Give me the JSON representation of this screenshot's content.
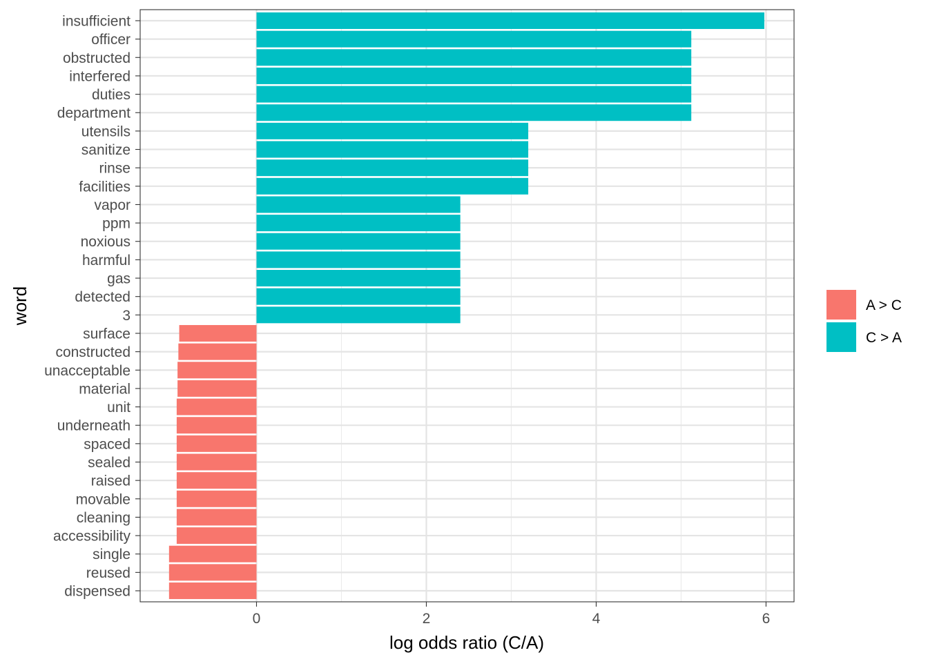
{
  "chart_data": {
    "type": "bar",
    "orientation": "horizontal",
    "xlabel": "log odds ratio (C/A)",
    "ylabel": "word",
    "xlim": [
      -1.37,
      6.33
    ],
    "xticks": [
      0,
      2,
      4,
      6
    ],
    "grid": true,
    "legend_position": "right",
    "legend": [
      {
        "label": "A > C",
        "color": "#F8766D"
      },
      {
        "label": "C > A",
        "color": "#00BFC4"
      }
    ],
    "categories": [
      "insufficient",
      "officer",
      "obstructed",
      "interfered",
      "duties",
      "department",
      "utensils",
      "sanitize",
      "rinse",
      "facilities",
      "vapor",
      "ppm",
      "noxious",
      "harmful",
      "gas",
      "detected",
      "3",
      "surface",
      "constructed",
      "unacceptable",
      "material",
      "unit",
      "underneath",
      "spaced",
      "sealed",
      "raised",
      "movable",
      "cleaning",
      "accessibility",
      "single",
      "reused",
      "dispensed"
    ],
    "values": [
      5.98,
      5.12,
      5.12,
      5.12,
      5.12,
      5.12,
      3.2,
      3.2,
      3.2,
      3.2,
      2.4,
      2.4,
      2.4,
      2.4,
      2.4,
      2.4,
      2.4,
      -0.91,
      -0.92,
      -0.93,
      -0.93,
      -0.94,
      -0.94,
      -0.94,
      -0.94,
      -0.94,
      -0.94,
      -0.94,
      -0.94,
      -1.03,
      -1.03,
      -1.03
    ],
    "groups": [
      "C > A",
      "C > A",
      "C > A",
      "C > A",
      "C > A",
      "C > A",
      "C > A",
      "C > A",
      "C > A",
      "C > A",
      "C > A",
      "C > A",
      "C > A",
      "C > A",
      "C > A",
      "C > A",
      "C > A",
      "A > C",
      "A > C",
      "A > C",
      "A > C",
      "A > C",
      "A > C",
      "A > C",
      "A > C",
      "A > C",
      "A > C",
      "A > C",
      "A > C",
      "A > C",
      "A > C",
      "A > C"
    ]
  }
}
